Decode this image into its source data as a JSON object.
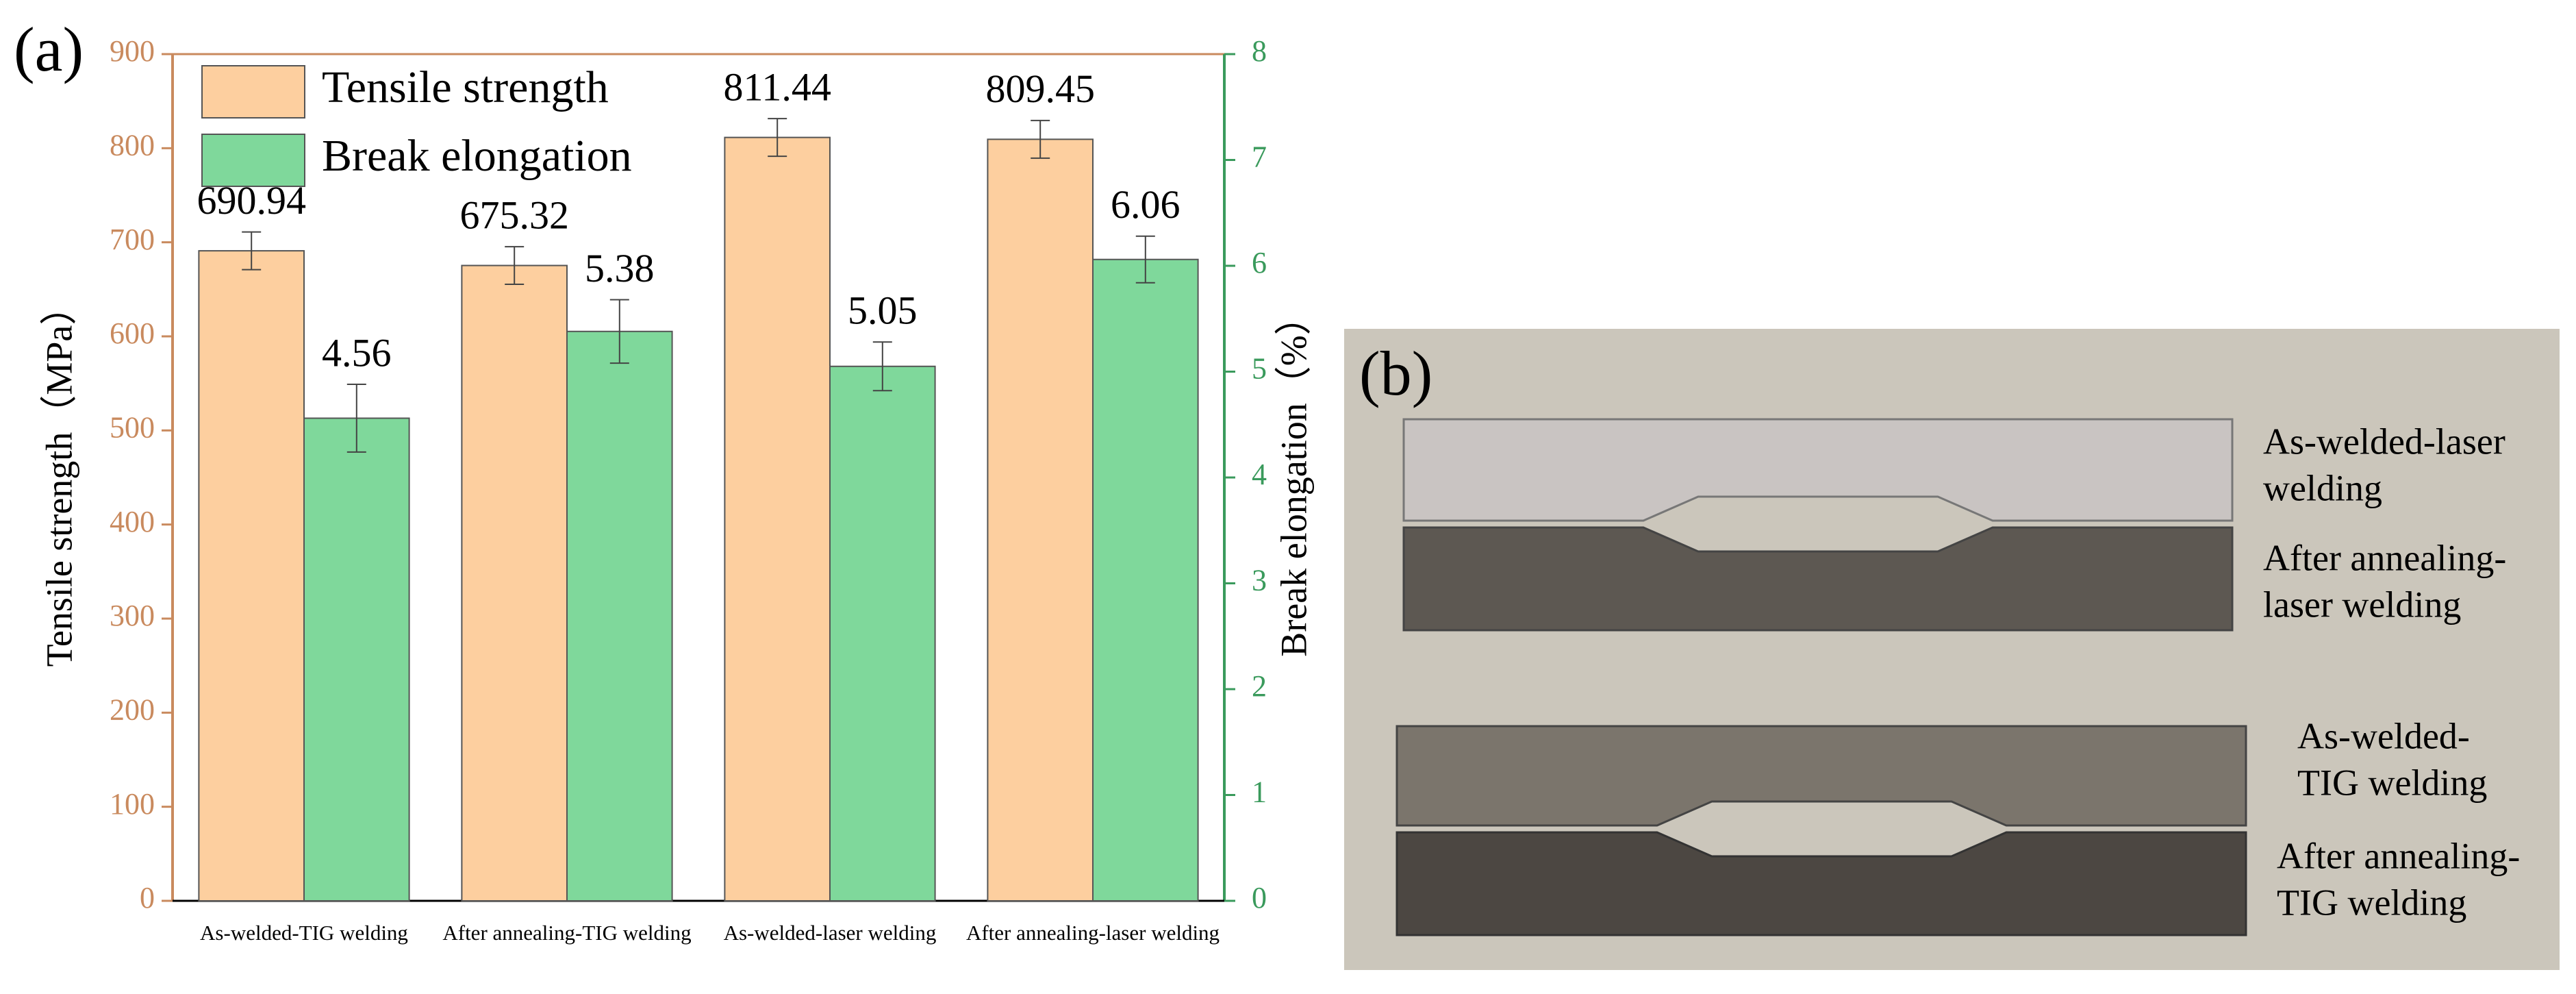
{
  "chart_data": {
    "type": "bar",
    "panel_label": "(a)",
    "categories": [
      "As-welded-TIG welding",
      "After annealing-TIG welding",
      "As-welded-laser welding",
      "After annealing-laser welding"
    ],
    "series": [
      {
        "name": "Tensile strength",
        "color": "#fdcf9f",
        "values": [
          690.94,
          675.32,
          811.44,
          809.45
        ],
        "errors": [
          20,
          20,
          20,
          20
        ]
      },
      {
        "name": "Break elongation",
        "color": "#7fd89b",
        "axis": "y2",
        "values": [
          4.56,
          5.38,
          5.05,
          6.06
        ],
        "errors": [
          0.32,
          0.3,
          0.23,
          0.22
        ]
      }
    ],
    "ylabel": "Tensile strength（MPa）",
    "y2label": "Break elongation（%）",
    "ylim": [
      0,
      900
    ],
    "yticks": [
      0,
      100,
      200,
      300,
      400,
      500,
      600,
      700,
      800,
      900
    ],
    "y2lim": [
      0,
      8
    ],
    "y2ticks": [
      0,
      1,
      2,
      3,
      4,
      5,
      6,
      7,
      8
    ],
    "ycolor": "#c98a5e",
    "y2color": "#3a9a5c",
    "legend": "upper left"
  },
  "photo": {
    "panel_label": "(b)",
    "labels": [
      [
        "As-welded-laser",
        "welding"
      ],
      [
        "After annealing-",
        "laser welding"
      ],
      [
        "As-welded-",
        "TIG welding"
      ],
      [
        "After annealing-",
        "TIG welding"
      ]
    ]
  }
}
